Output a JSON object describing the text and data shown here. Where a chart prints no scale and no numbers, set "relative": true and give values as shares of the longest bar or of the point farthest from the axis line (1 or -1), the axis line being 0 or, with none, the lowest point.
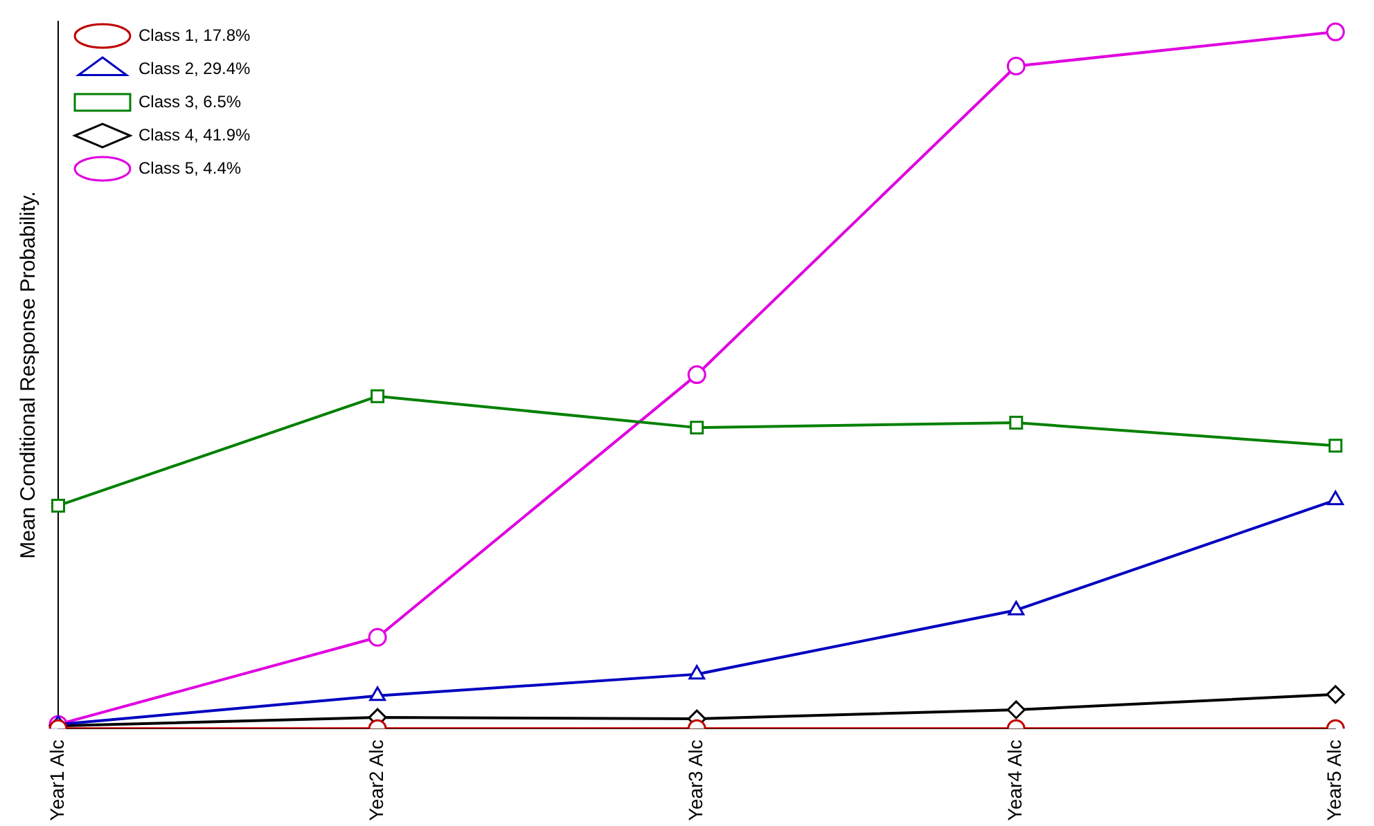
{
  "chart_data": {
    "type": "line",
    "relative": true,
    "ylabel": "Mean Conditional Response Probability.",
    "categories": [
      "Year1 Alc",
      "Year2 Alc",
      "Year3 Alc",
      "Year4 Alc",
      "Year5 Alc"
    ],
    "legend": "top left",
    "grid": false,
    "series": [
      {
        "name": "Class 1, 17.8%",
        "color": "#c00000",
        "marker": "circle",
        "values": [
          0,
          0,
          0,
          0,
          0
        ]
      },
      {
        "name": "Class 2, 29.4%",
        "color": "#0000c0",
        "marker": "triangle",
        "values": [
          0.006,
          0.047,
          0.078,
          0.17,
          0.328
        ]
      },
      {
        "name": "Class 3, 6.5%",
        "color": "#008000",
        "marker": "square",
        "values": [
          0.32,
          0.477,
          0.432,
          0.439,
          0.406
        ]
      },
      {
        "name": "Class 4, 41.9%",
        "color": "#000000",
        "marker": "diamond",
        "values": [
          0.004,
          0.016,
          0.014,
          0.027,
          0.049
        ]
      },
      {
        "name": "Class 5, 4.4%",
        "color": "#e000e0",
        "marker": "circle",
        "values": [
          0.006,
          0.131,
          0.508,
          0.951,
          1
        ]
      }
    ]
  }
}
